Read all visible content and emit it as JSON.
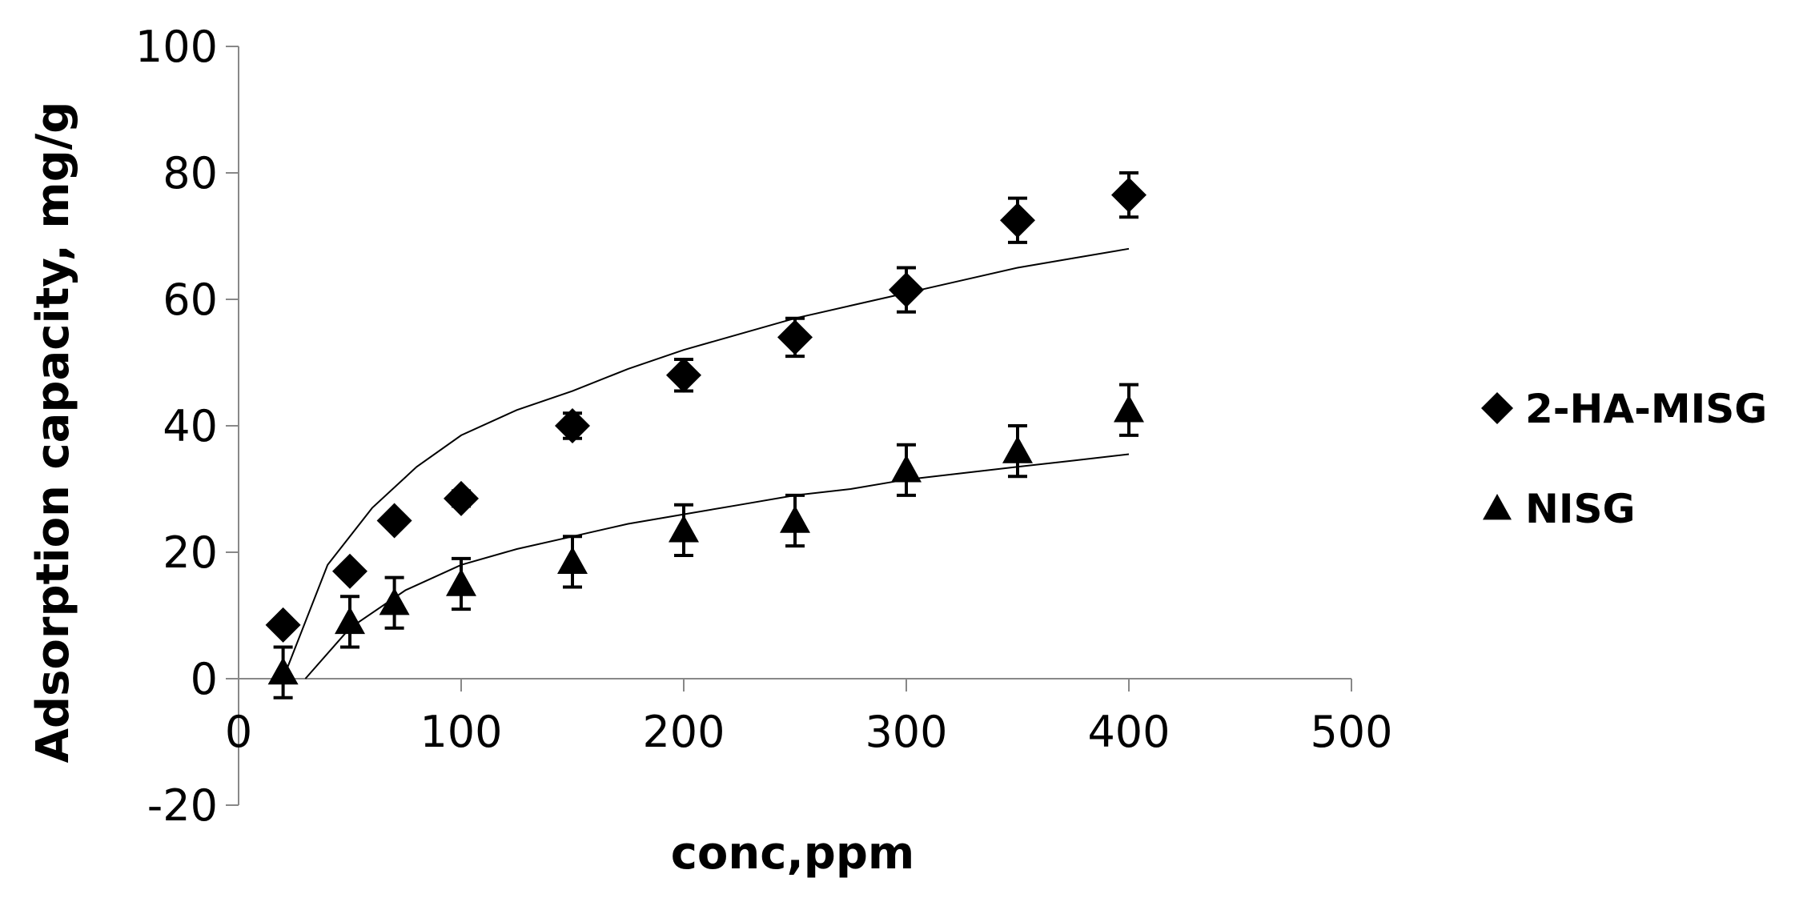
{
  "chart_data": {
    "type": "scatter",
    "title": "",
    "xlabel": "conc,ppm",
    "ylabel": "Adsorption capacity, mg/g",
    "xlim": [
      0,
      500
    ],
    "ylim": [
      -20,
      100
    ],
    "x_ticks": [
      "0",
      "100",
      "200",
      "300",
      "400",
      "500"
    ],
    "y_ticks": [
      "-20",
      "0",
      "20",
      "40",
      "60",
      "80",
      "100"
    ],
    "grid": false,
    "legend_position": "right",
    "series": [
      {
        "name": "2-HA-MISG",
        "marker": "diamond",
        "color": "#000000",
        "x": [
          20,
          50,
          70,
          100,
          150,
          200,
          250,
          300,
          350,
          400
        ],
        "y": [
          8.5,
          17,
          25,
          28.5,
          40,
          48,
          54,
          61.5,
          72.5,
          76.5
        ],
        "error": [
          0.8,
          1,
          1,
          1.2,
          2,
          2.5,
          3,
          3.5,
          3.5,
          3.5
        ],
        "fit_curve": {
          "x": [
            20,
            40,
            60,
            80,
            100,
            125,
            150,
            175,
            200,
            225,
            250,
            275,
            300,
            325,
            350,
            375,
            400
          ],
          "y": [
            0,
            18,
            27,
            33.5,
            38.5,
            42.5,
            45.5,
            49,
            52,
            54.5,
            57,
            59,
            61,
            63,
            65,
            66.5,
            68
          ]
        }
      },
      {
        "name": "NISG",
        "marker": "triangle",
        "color": "#000000",
        "x": [
          20,
          50,
          70,
          100,
          150,
          200,
          250,
          300,
          350,
          400
        ],
        "y": [
          1,
          9,
          12,
          15,
          18.5,
          23.5,
          25,
          33,
          36,
          42.5
        ],
        "error": [
          4,
          4,
          4,
          4,
          4,
          4,
          4,
          4,
          4,
          4
        ],
        "fit_curve": {
          "x": [
            30,
            50,
            75,
            100,
            125,
            150,
            175,
            200,
            225,
            250,
            275,
            300,
            325,
            350,
            375,
            400
          ],
          "y": [
            0,
            8,
            14,
            18,
            20.5,
            22.5,
            24.5,
            26,
            27.5,
            29,
            30,
            31.5,
            32.5,
            33.5,
            34.5,
            35.5
          ]
        }
      }
    ]
  }
}
